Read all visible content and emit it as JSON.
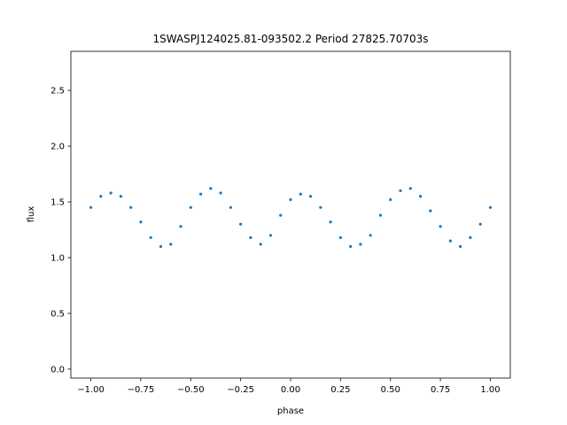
{
  "chart_data": {
    "type": "scatter",
    "title": "1SWASPJ124025.81-093502.2 Period 27825.70703s",
    "xlabel": "phase",
    "ylabel": "flux",
    "xlim": [
      -1.1,
      1.1
    ],
    "ylim": [
      -0.08,
      2.85
    ],
    "xticks": [
      -1.0,
      -0.75,
      -0.5,
      -0.25,
      0.0,
      0.25,
      0.5,
      0.75,
      1.0
    ],
    "xtick_labels": [
      "−1.00",
      "−0.75",
      "−0.50",
      "−0.25",
      "0.00",
      "0.25",
      "0.50",
      "0.75",
      "1.00"
    ],
    "yticks": [
      0.0,
      0.5,
      1.0,
      1.5,
      2.0,
      2.5
    ],
    "ytick_labels": [
      "0.0",
      "0.5",
      "1.0",
      "1.5",
      "2.0",
      "2.5"
    ],
    "grid": false,
    "marker_color": "#1f77b4",
    "series": [
      {
        "x": [
          -1.0,
          -0.95,
          -0.9,
          -0.85,
          -0.8,
          -0.75,
          -0.7,
          -0.65,
          -0.6,
          -0.55,
          -0.5,
          -0.45,
          -0.4,
          -0.35,
          -0.3,
          -0.25,
          -0.2,
          -0.15,
          -0.1,
          -0.05,
          0.0,
          0.05,
          0.1,
          0.15,
          0.2,
          0.25,
          0.3,
          0.35,
          0.4,
          0.45,
          0.5,
          0.55,
          0.6,
          0.65,
          0.7,
          0.75,
          0.8,
          0.85,
          0.9,
          0.95,
          1.0
        ],
        "y": [
          1.45,
          1.55,
          1.58,
          1.55,
          1.45,
          1.32,
          1.18,
          1.1,
          1.12,
          1.28,
          1.45,
          1.57,
          1.62,
          1.58,
          1.45,
          1.3,
          1.18,
          1.12,
          1.2,
          1.38,
          1.52,
          1.57,
          1.55,
          1.45,
          1.32,
          1.18,
          1.1,
          1.12,
          1.2,
          1.38,
          1.52,
          1.6,
          1.62,
          1.55,
          1.42,
          1.28,
          1.15,
          1.1,
          1.18,
          1.3,
          1.45
        ]
      }
    ]
  }
}
